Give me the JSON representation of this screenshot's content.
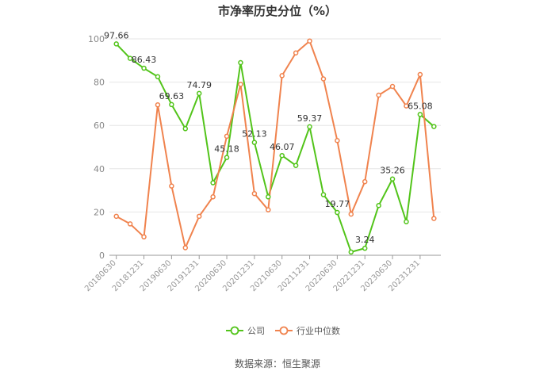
{
  "chart_data": {
    "type": "line",
    "title": "市净率历史分位（%）",
    "source": "数据来源：恒生聚源",
    "ylim": [
      0,
      100
    ],
    "yticks": [
      0,
      20,
      40,
      60,
      80,
      100
    ],
    "grid": true,
    "legend_position": "bottom",
    "x": [
      "20180630",
      "20180930",
      "20181231",
      "20190331",
      "20190630",
      "20190930",
      "20191231",
      "20200331",
      "20200630",
      "20200930",
      "20201231",
      "20210331",
      "20210630",
      "20210930",
      "20211231",
      "20220331",
      "20220630",
      "20220930",
      "20221231",
      "20230331",
      "20230630",
      "20230930",
      "20231231",
      "20240331"
    ],
    "xtick_labels": [
      "20180630",
      "20181231",
      "20190630",
      "20191231",
      "20200630",
      "20201231",
      "20210630",
      "20211231",
      "20220630",
      "20221231",
      "20230630",
      "20231231"
    ],
    "series": [
      {
        "name": "公司",
        "color": "#52c41a",
        "values": [
          97.66,
          91.0,
          86.43,
          82.5,
          69.63,
          58.5,
          74.79,
          33.5,
          45.18,
          89.0,
          52.13,
          27.0,
          46.07,
          41.5,
          59.37,
          28.0,
          19.77,
          1.5,
          3.24,
          23.0,
          35.26,
          15.5,
          65.08,
          59.5
        ],
        "labels": {
          "0": "97.66",
          "2": "86.43",
          "4": "69.63",
          "6": "74.79",
          "8": "45.18",
          "10": "52.13",
          "12": "46.07",
          "14": "59.37",
          "16": "19.77",
          "18": "3.24",
          "20": "35.26",
          "22": "65.08"
        }
      },
      {
        "name": "行业中位数",
        "color": "#f0834e",
        "values": [
          18.0,
          14.5,
          8.5,
          69.5,
          32.0,
          3.5,
          18.0,
          27.0,
          55.0,
          79.0,
          28.5,
          21.0,
          83.0,
          93.5,
          99.0,
          81.5,
          53.0,
          19.0,
          34.0,
          74.0,
          78.0,
          69.0,
          83.5,
          17.0
        ]
      }
    ]
  }
}
